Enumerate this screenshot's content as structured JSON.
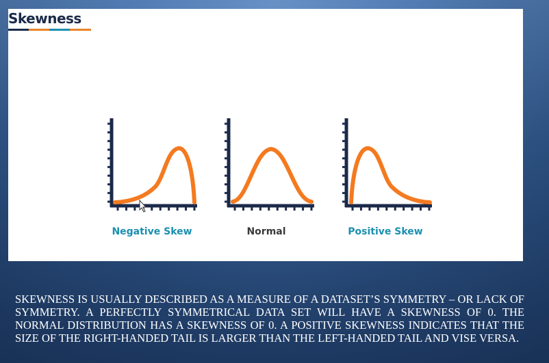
{
  "slide": {
    "title": "Skewness",
    "title_bar_colors": [
      "#1b2a49",
      "#e8832a",
      "#1a8fb0",
      "#e8832a"
    ],
    "charts": [
      {
        "label": "Negative Skew",
        "label_color": "#1a8fb0"
      },
      {
        "label": "Normal",
        "label_color": "#3a3a3a"
      },
      {
        "label": "Positive Skew",
        "label_color": "#1a8fb0"
      }
    ],
    "axis_color": "#1b2a49",
    "curve_color": "#f47a20"
  },
  "description": "SKEWNESS IS USUALLY DESCRIBED AS A MEASURE OF A DATASET’S SYMMETRY – OR LACK OF SYMMETRY.   A PERFECTLY SYMMETRICAL DATA SET WILL HAVE A SKEWNESS OF 0.   THE NORMAL DISTRIBUTION HAS A SKEWNESS OF 0. A POSITIVE SKEWNESS INDICATES THAT THE SIZE OF THE RIGHT-HANDED TAIL IS LARGER THAN THE LEFT-HANDED TAIL AND VISE VERSA."
}
